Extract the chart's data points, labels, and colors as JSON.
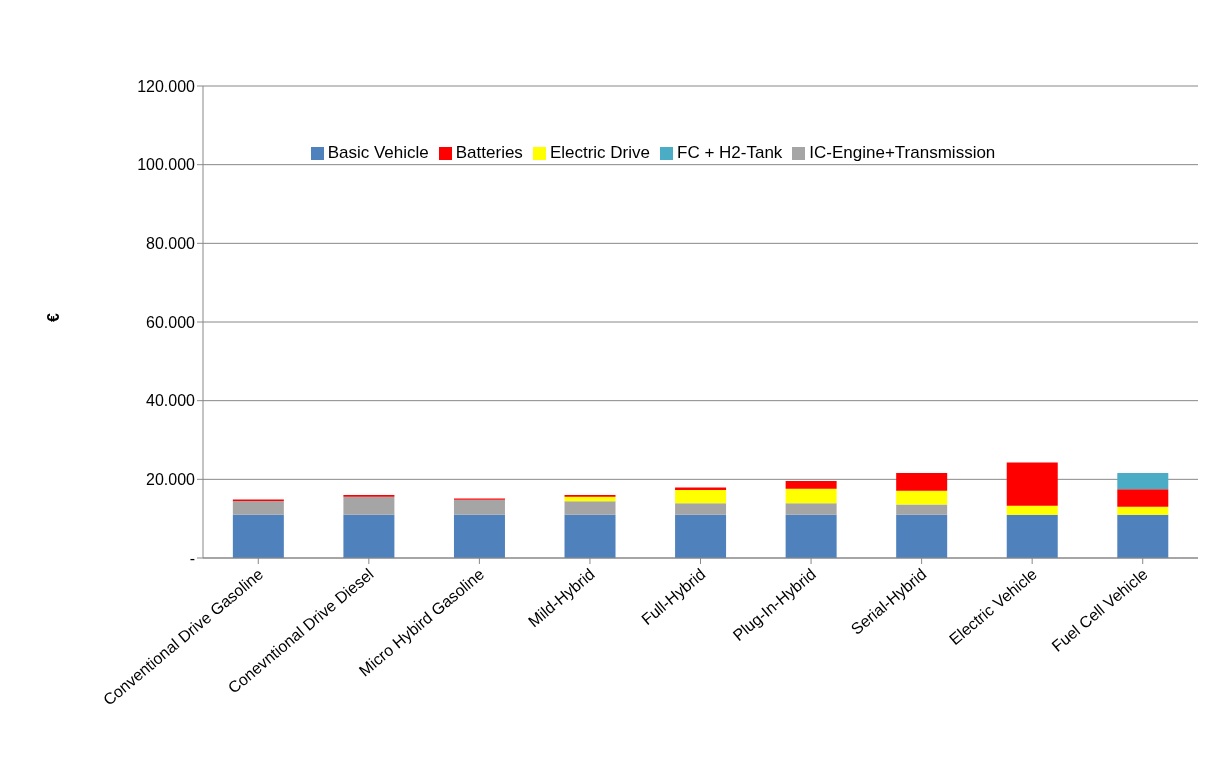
{
  "chart_data": {
    "type": "bar",
    "stacked": true,
    "ylabel": "€",
    "categories": [
      "Conventional Drive Gasoline",
      "Conevntional Drive Diesel",
      "Micro Hybird Gasoline",
      "Mild-Hybrid",
      "Full-Hybrid",
      "Plug-In-Hybrid",
      "Serial-Hybrid",
      "Electric Vehicle",
      "Fuel Cell Vehicle"
    ],
    "series": [
      {
        "name": "Basic Vehicle",
        "color": "#4f81bd",
        "values": [
          11000,
          11000,
          11000,
          11000,
          11000,
          11000,
          11000,
          11000,
          11000
        ]
      },
      {
        "name": "IC-Engine+Transmission",
        "color": "#a5a5a5",
        "values": [
          3500,
          4600,
          3800,
          3400,
          2900,
          2900,
          2600,
          0,
          0
        ]
      },
      {
        "name": "Electric Drive",
        "color": "#ffff00",
        "values": [
          0,
          0,
          0,
          1200,
          3400,
          3700,
          3500,
          2300,
          2000
        ]
      },
      {
        "name": "Batteries",
        "color": "#ff0000",
        "values": [
          400,
          400,
          300,
          400,
          600,
          2000,
          4500,
          11000,
          4500
        ]
      },
      {
        "name": "FC + H2-Tank",
        "color": "#4bacc6",
        "values": [
          0,
          0,
          0,
          0,
          0,
          0,
          0,
          0,
          4100
        ]
      }
    ],
    "ylim": [
      0,
      120000
    ],
    "yticks": [
      {
        "value": 0,
        "label": "-"
      },
      {
        "value": 20000,
        "label": "20.000"
      },
      {
        "value": 40000,
        "label": "40.000"
      },
      {
        "value": 60000,
        "label": "60.000"
      },
      {
        "value": 80000,
        "label": "80.000"
      },
      {
        "value": 100000,
        "label": "100.000"
      },
      {
        "value": 120000,
        "label": "120.000"
      }
    ],
    "grid": "y",
    "legend": "top"
  }
}
